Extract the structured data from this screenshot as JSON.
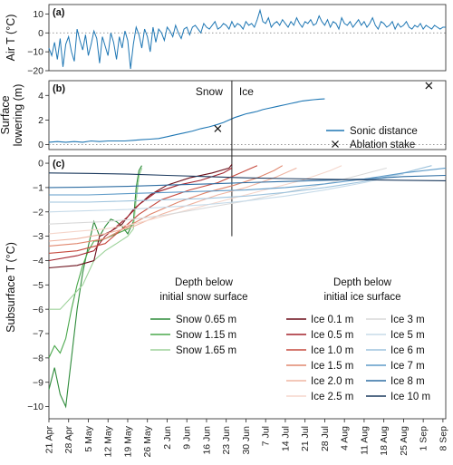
{
  "chart_data": [
    {
      "panel_label": "(a)",
      "type": "line",
      "ylabel": "Air T (°C)",
      "ylim": [
        -20,
        15
      ],
      "yticks": [
        -20,
        -10,
        0,
        10
      ],
      "reference_line": 0,
      "color": "#1f77b4",
      "series": [
        {
          "x": [
            0,
            1,
            2,
            3,
            4,
            5,
            6,
            7,
            8,
            9,
            10,
            11,
            12,
            13,
            14,
            15,
            16,
            17,
            18,
            19,
            20,
            21,
            22,
            23,
            24,
            25,
            26,
            27,
            28,
            29,
            30,
            31,
            32,
            33,
            34,
            35,
            36,
            37,
            38,
            39,
            40,
            41,
            42,
            43,
            44,
            45,
            46,
            47,
            48,
            49,
            50,
            51,
            52,
            53,
            54,
            55,
            56,
            57,
            58,
            59,
            60,
            61,
            62,
            63,
            64,
            65,
            66,
            67,
            68,
            69,
            70,
            71,
            72,
            73,
            74,
            75,
            76,
            77,
            78,
            79,
            80,
            81,
            82,
            83,
            84,
            85,
            86,
            87,
            88,
            89,
            90,
            91,
            92,
            93,
            94,
            95,
            96,
            97,
            98,
            99,
            100,
            101,
            102,
            103,
            104,
            105,
            106,
            107,
            108,
            109,
            110,
            111,
            112,
            113,
            114,
            115,
            116,
            117,
            118,
            119,
            120,
            121,
            122,
            123,
            124,
            125,
            126,
            127,
            128,
            129,
            130,
            131,
            132,
            133,
            134,
            135,
            136,
            137,
            138,
            139,
            140,
            141
          ],
          "y": [
            -8,
            -12,
            -5,
            -14,
            -3,
            -18,
            -6,
            -2,
            -10,
            -15,
            2,
            -4,
            -9,
            -1,
            -12,
            -6,
            1,
            -3,
            -16,
            -2,
            -7,
            -12,
            0,
            -5,
            -14,
            -2,
            -8,
            1,
            -4,
            -19,
            -6,
            3,
            -1,
            -8,
            2,
            -2,
            -10,
            3,
            -5,
            2,
            0,
            -4,
            3,
            1,
            -2,
            4,
            0,
            -3,
            2,
            3,
            -1,
            3,
            4,
            2,
            0,
            5,
            3,
            2,
            4,
            6,
            2,
            3,
            5,
            4,
            2,
            6,
            3,
            5,
            4,
            2,
            6,
            4,
            5,
            3,
            7,
            12,
            6,
            5,
            8,
            3,
            5,
            6,
            4,
            7,
            5,
            3,
            6,
            4,
            8,
            5,
            3,
            6,
            5,
            7,
            4,
            5,
            9,
            6,
            4,
            7,
            3,
            6,
            5,
            2,
            8,
            5,
            4,
            6,
            3,
            5,
            7,
            4,
            6,
            3,
            5,
            8,
            4,
            2,
            6,
            5,
            3,
            4,
            6,
            2,
            5,
            3,
            4,
            6,
            3,
            2,
            4,
            3,
            5,
            2,
            4,
            3,
            2,
            4,
            3,
            2,
            3,
            3
          ]
        }
      ]
    },
    {
      "panel_label": "(b)",
      "type": "line",
      "ylabel": "Surface lowering (m)",
      "ylim": [
        -0.4,
        5.2
      ],
      "yticks": [
        0,
        2,
        4
      ],
      "reference_line": 0,
      "divider_day": 65,
      "annotations": [
        "Snow",
        "Ice"
      ],
      "legend_position": "lower-right",
      "series": [
        {
          "name": "Sonic distance",
          "color": "#1f77b4",
          "x": [
            0,
            3,
            6,
            9,
            12,
            15,
            18,
            21,
            24,
            27,
            30,
            33,
            36,
            39,
            42,
            45,
            48,
            51,
            54,
            57,
            60,
            62,
            64,
            66,
            68,
            70,
            72,
            74,
            76,
            78,
            80,
            82,
            84,
            86,
            88,
            90,
            92,
            94,
            96,
            98
          ],
          "y": [
            0.2,
            0.25,
            0.2,
            0.25,
            0.2,
            0.3,
            0.25,
            0.3,
            0.3,
            0.3,
            0.35,
            0.4,
            0.45,
            0.5,
            0.65,
            0.8,
            0.95,
            1.1,
            1.3,
            1.45,
            1.65,
            1.8,
            2.0,
            2.2,
            2.35,
            2.5,
            2.6,
            2.7,
            2.85,
            2.95,
            3.05,
            3.15,
            3.25,
            3.35,
            3.45,
            3.55,
            3.6,
            3.65,
            3.7,
            3.72
          ]
        },
        {
          "name": "Ablation stake",
          "color": "#111111",
          "x": [
            60,
            135
          ],
          "y": [
            1.3,
            4.8
          ]
        }
      ]
    },
    {
      "panel_label": "(c)",
      "type": "line",
      "ylabel": "Subsurface T (°C)",
      "ylim": [
        -10.5,
        0.3
      ],
      "yticks": [
        0,
        -1,
        -2,
        -3,
        -4,
        -5,
        -6,
        -7,
        -8,
        -9,
        -10
      ],
      "x_range": [
        0,
        141
      ],
      "x_tick_days": [
        0,
        7,
        14,
        21,
        28,
        35,
        42,
        49,
        56,
        63,
        70,
        77,
        84,
        91,
        98,
        105,
        112,
        119,
        126,
        133,
        140
      ],
      "x_tick_labels": [
        "21 Apr",
        "28 Apr",
        "5 May",
        "12 May",
        "19 May",
        "26 May",
        "2 Jun",
        "9 Jun",
        "16 Jun",
        "23 Jun",
        "30 Jun",
        "7 Jul",
        "14 Jul",
        "21 Jul",
        "28 Jul",
        "4 Aug",
        "11 Aug",
        "18 Aug",
        "25 Aug",
        "1 Sep",
        "8 Sep"
      ],
      "divider_day": 65,
      "snow_legend_title": [
        "Depth below",
        "initial snow surface"
      ],
      "ice_legend_title": [
        "Depth below",
        "initial ice surface"
      ],
      "series": [
        {
          "name": "Snow 0.65 m",
          "group": "snow",
          "color": "#2e8b3a",
          "x": [
            0,
            2,
            4,
            6,
            8,
            10,
            12,
            14,
            16,
            18,
            20,
            22,
            24,
            26,
            28,
            30,
            31,
            32,
            33
          ],
          "y": [
            -9.3,
            -8.4,
            -9.5,
            -10.0,
            -8.0,
            -6.0,
            -4.5,
            -3.4,
            -2.4,
            -3.0,
            -2.6,
            -2.3,
            -2.4,
            -2.6,
            -2.9,
            -2.4,
            -1.0,
            -0.3,
            -0.1
          ]
        },
        {
          "name": "Snow 1.15 m",
          "group": "snow",
          "color": "#4aa84c",
          "x": [
            0,
            2,
            4,
            6,
            8,
            10,
            12,
            14,
            16,
            18,
            20,
            22,
            24,
            26,
            28,
            30,
            31,
            32,
            33
          ],
          "y": [
            -8.0,
            -7.5,
            -7.8,
            -7.2,
            -6.0,
            -5.0,
            -4.2,
            -3.6,
            -3.2,
            -3.2,
            -3.1,
            -3.0,
            -2.9,
            -2.8,
            -2.7,
            -2.5,
            -1.5,
            -0.5,
            -0.2
          ]
        },
        {
          "name": "Snow 1.65 m",
          "group": "snow",
          "color": "#9dd29a",
          "x": [
            0,
            4,
            8,
            12,
            16,
            20,
            24,
            28,
            30,
            31,
            32,
            33
          ],
          "y": [
            -6.0,
            -6.0,
            -5.5,
            -5.0,
            -4.0,
            -3.6,
            -3.3,
            -3.0,
            -2.7,
            -1.5,
            -0.5,
            -0.2
          ]
        },
        {
          "name": "Ice 0.1 m",
          "group": "ice",
          "color": "#6b0f1a",
          "x": [
            0,
            10,
            16,
            18,
            22,
            26,
            30,
            36,
            42,
            50,
            58,
            64,
            65
          ],
          "y": [
            -4.3,
            -4.2,
            -4.0,
            -3.0,
            -2.8,
            -2.5,
            -1.9,
            -1.3,
            -0.9,
            -0.6,
            -0.4,
            -0.2,
            -0.05
          ]
        },
        {
          "name": "Ice 0.5 m",
          "group": "ice",
          "color": "#a3222c",
          "x": [
            0,
            10,
            16,
            20,
            24,
            28,
            32,
            38,
            46,
            54,
            62,
            65
          ],
          "y": [
            -4.0,
            -3.8,
            -3.6,
            -3.0,
            -2.6,
            -2.2,
            -1.7,
            -1.2,
            -0.9,
            -0.7,
            -0.4,
            -0.2
          ]
        },
        {
          "name": "Ice 1.0 m",
          "group": "ice",
          "color": "#c64a3e",
          "x": [
            0,
            10,
            20,
            26,
            32,
            40,
            50,
            60,
            66,
            70,
            72,
            74
          ],
          "y": [
            -3.7,
            -3.6,
            -3.3,
            -2.7,
            -2.1,
            -1.5,
            -1.1,
            -0.8,
            -0.5,
            -0.3,
            -0.2,
            -0.1
          ]
        },
        {
          "name": "Ice 1.5 m",
          "group": "ice",
          "color": "#e0876e",
          "x": [
            0,
            10,
            20,
            28,
            36,
            46,
            56,
            66,
            74,
            80,
            83
          ],
          "y": [
            -3.4,
            -3.3,
            -3.1,
            -2.6,
            -2.1,
            -1.6,
            -1.2,
            -0.9,
            -0.6,
            -0.3,
            -0.1
          ]
        },
        {
          "name": "Ice 2.0 m",
          "group": "ice",
          "color": "#efb5a2",
          "x": [
            0,
            10,
            20,
            30,
            40,
            50,
            60,
            70,
            80,
            88
          ],
          "y": [
            -3.2,
            -3.1,
            -2.9,
            -2.6,
            -2.1,
            -1.7,
            -1.3,
            -1.0,
            -0.6,
            -0.2
          ]
        },
        {
          "name": "Ice 2.5 m",
          "group": "ice",
          "color": "#f5d6cb",
          "x": [
            0,
            10,
            20,
            30,
            40,
            50,
            60,
            70,
            80,
            90,
            100,
            104
          ],
          "y": [
            -2.9,
            -2.8,
            -2.7,
            -2.5,
            -2.2,
            -1.9,
            -1.6,
            -1.3,
            -1.0,
            -0.7,
            -0.3,
            -0.1
          ]
        },
        {
          "name": "Ice 3 m",
          "group": "ice",
          "color": "#d9d9d9",
          "x": [
            0,
            10,
            20,
            30,
            40,
            50,
            60,
            70,
            80,
            90,
            100,
            110,
            120
          ],
          "y": [
            -2.5,
            -2.45,
            -2.4,
            -2.3,
            -2.15,
            -1.95,
            -1.75,
            -1.55,
            -1.3,
            -1.05,
            -0.8,
            -0.5,
            -0.2
          ]
        },
        {
          "name": "Ice 5 m",
          "group": "ice",
          "color": "#c7dbe9",
          "x": [
            0,
            14,
            28,
            42,
            56,
            70,
            84,
            98,
            112,
            126
          ],
          "y": [
            -2.0,
            -1.95,
            -1.9,
            -1.8,
            -1.7,
            -1.55,
            -1.35,
            -1.1,
            -0.8,
            -0.45
          ]
        },
        {
          "name": "Ice 6 m",
          "group": "ice",
          "color": "#9ec3dd",
          "x": [
            0,
            14,
            28,
            42,
            56,
            70,
            84,
            98,
            112,
            126,
            136
          ],
          "y": [
            -1.6,
            -1.6,
            -1.55,
            -1.5,
            -1.45,
            -1.35,
            -1.2,
            -1.0,
            -0.75,
            -0.4,
            -0.1
          ]
        },
        {
          "name": "Ice 7 m",
          "group": "ice",
          "color": "#5f9bc8",
          "x": [
            0,
            14,
            28,
            42,
            56,
            70,
            84,
            98,
            112,
            126,
            141
          ],
          "y": [
            -1.3,
            -1.3,
            -1.25,
            -1.2,
            -1.15,
            -1.1,
            -1.0,
            -0.85,
            -0.65,
            -0.4,
            -0.2
          ]
        },
        {
          "name": "Ice 8 m",
          "group": "ice",
          "color": "#2f6ea3",
          "x": [
            0,
            14,
            28,
            42,
            56,
            70,
            84,
            98,
            112,
            126,
            141
          ],
          "y": [
            -1.0,
            -0.98,
            -0.95,
            -0.9,
            -0.85,
            -0.8,
            -0.75,
            -0.7,
            -0.65,
            -0.55,
            -0.5
          ]
        },
        {
          "name": "Ice 10 m",
          "group": "ice",
          "color": "#1c3a5e",
          "x": [
            0,
            14,
            28,
            42,
            56,
            70,
            84,
            98,
            112,
            126,
            141
          ],
          "y": [
            -0.4,
            -0.42,
            -0.45,
            -0.5,
            -0.55,
            -0.6,
            -0.63,
            -0.66,
            -0.68,
            -0.7,
            -0.72
          ]
        }
      ]
    }
  ]
}
